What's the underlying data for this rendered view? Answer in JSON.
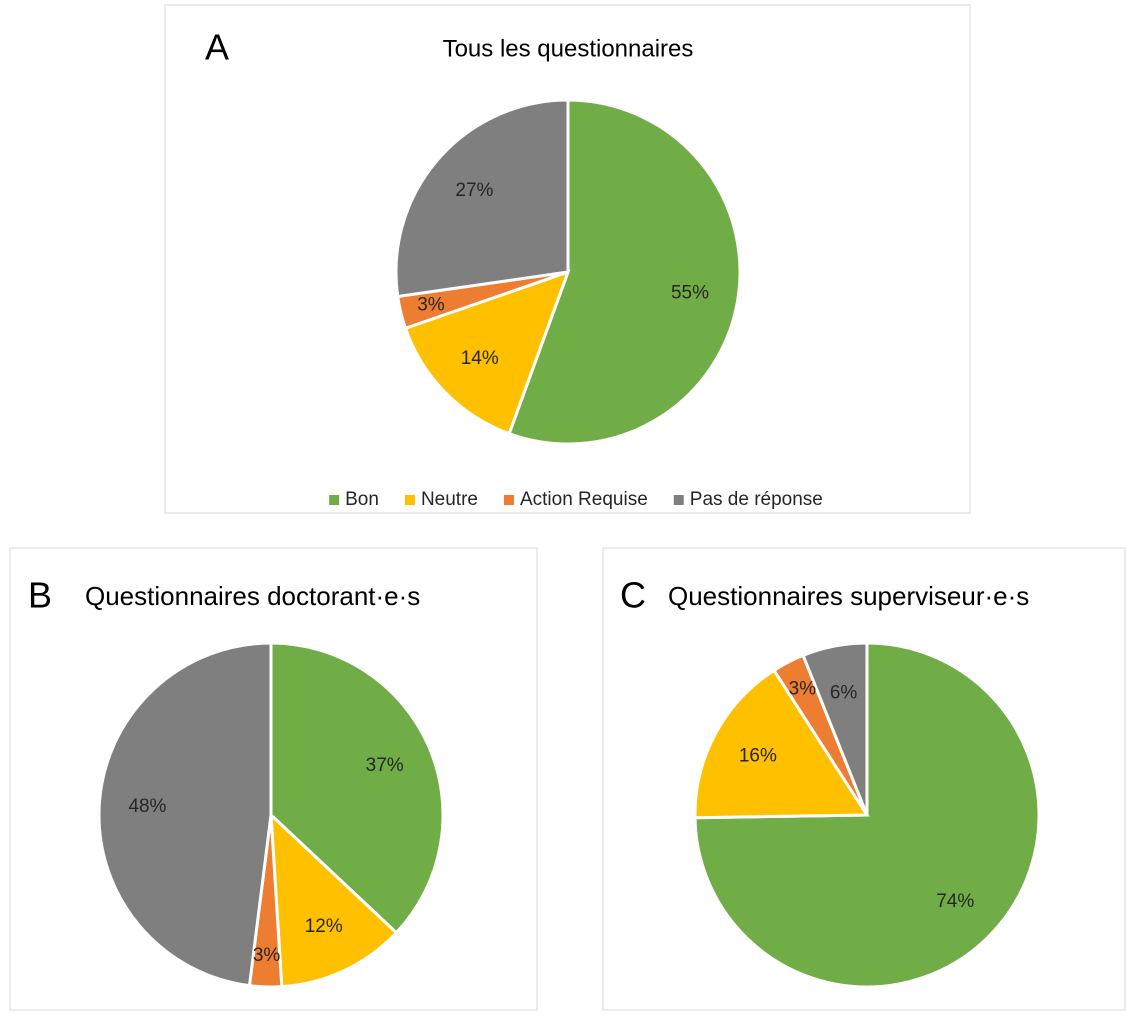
{
  "chart_data": [
    {
      "type": "pie",
      "panel": "A",
      "title": "Tous les questionnaires",
      "categories": [
        "Bon",
        "Neutre",
        "Action Requise",
        "Pas de réponse"
      ],
      "values": [
        55,
        14,
        3,
        27
      ],
      "value_labels": [
        "55%",
        "14%",
        "3%",
        "27%"
      ],
      "colors": [
        "#70ad47",
        "#ffc000",
        "#ed7d31",
        "#7f7f7f"
      ],
      "legend": "bottom"
    },
    {
      "type": "pie",
      "panel": "B",
      "title": "Questionnaires doctorant·e·s",
      "values": [
        37,
        12,
        3,
        48
      ],
      "value_labels": [
        "37%",
        "12%",
        "3%",
        "48%"
      ],
      "colors": [
        "#70ad47",
        "#ffc000",
        "#ed7d31",
        "#7f7f7f"
      ]
    },
    {
      "type": "pie",
      "panel": "C",
      "title": "Questionnaires superviseur·e·s",
      "values": [
        74,
        16,
        3,
        6
      ],
      "value_labels": [
        "74%",
        "16%",
        "3%",
        "6%"
      ],
      "colors": [
        "#70ad47",
        "#ffc000",
        "#ed7d31",
        "#7f7f7f"
      ]
    }
  ]
}
